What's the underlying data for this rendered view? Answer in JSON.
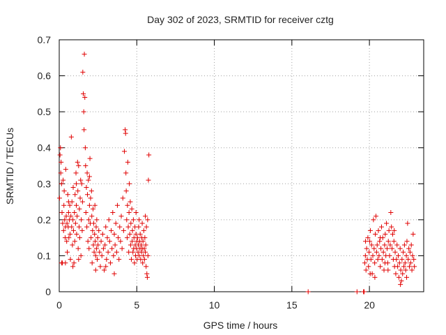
{
  "chart_data": {
    "type": "scatter",
    "title": "Day 302 of 2023, SRMTID for receiver cztg",
    "xlabel": "GPS time / hours",
    "ylabel": "SRMTID / TECUs",
    "xlim": [
      0,
      23.5
    ],
    "ylim": [
      0,
      0.7
    ],
    "xticks": [
      0,
      5,
      10,
      15,
      20
    ],
    "yticks": [
      0,
      0.1,
      0.2,
      0.3,
      0.4,
      0.5,
      0.6,
      0.7
    ],
    "grid": true,
    "marker": "+",
    "color": "#e00000",
    "series": [
      {
        "name": "SRMTID",
        "points": [
          [
            0.02,
            0.26
          ],
          [
            0.05,
            0.38
          ],
          [
            0.08,
            0.4
          ],
          [
            0.1,
            0.33
          ],
          [
            0.12,
            0.36
          ],
          [
            0.15,
            0.3
          ],
          [
            0.18,
            0.22
          ],
          [
            0.2,
            0.08
          ],
          [
            0.22,
            0.19
          ],
          [
            0.25,
            0.31
          ],
          [
            0.28,
            0.17
          ],
          [
            0.3,
            0.24
          ],
          [
            0.32,
            0.28
          ],
          [
            0.35,
            0.2
          ],
          [
            0.38,
            0.15
          ],
          [
            0.4,
            0.18
          ],
          [
            0.42,
            0.34
          ],
          [
            0.45,
            0.21
          ],
          [
            0.48,
            0.14
          ],
          [
            0.5,
            0.19
          ],
          [
            0.52,
            0.11
          ],
          [
            0.55,
            0.27
          ],
          [
            0.58,
            0.18
          ],
          [
            0.6,
            0.22
          ],
          [
            0.62,
            0.15
          ],
          [
            0.65,
            0.2
          ],
          [
            0.68,
            0.24
          ],
          [
            0.7,
            0.16
          ],
          [
            0.72,
            0.09
          ],
          [
            0.75,
            0.21
          ],
          [
            0.78,
            0.43
          ],
          [
            0.8,
            0.18
          ],
          [
            0.82,
            0.25
          ],
          [
            0.85,
            0.13
          ],
          [
            0.88,
            0.2
          ],
          [
            0.9,
            0.29
          ],
          [
            0.92,
            0.17
          ],
          [
            0.95,
            0.08
          ],
          [
            0.98,
            0.22
          ],
          [
            1.0,
            0.14
          ],
          [
            1.02,
            0.27
          ],
          [
            1.05,
            0.19
          ],
          [
            1.08,
            0.33
          ],
          [
            1.1,
            0.24
          ],
          [
            1.12,
            0.16
          ],
          [
            1.15,
            0.21
          ],
          [
            1.18,
            0.36
          ],
          [
            1.2,
            0.28
          ],
          [
            1.22,
            0.12
          ],
          [
            1.25,
            0.35
          ],
          [
            1.28,
            0.18
          ],
          [
            1.3,
            0.23
          ],
          [
            1.32,
            0.15
          ],
          [
            1.35,
            0.26
          ],
          [
            1.38,
            0.31
          ],
          [
            1.4,
            0.1
          ],
          [
            1.42,
            0.2
          ],
          [
            1.45,
            0.3
          ],
          [
            1.48,
            0.17
          ],
          [
            1.5,
            0.25
          ],
          [
            1.52,
            0.61
          ],
          [
            1.55,
            0.55
          ],
          [
            1.58,
            0.5
          ],
          [
            1.6,
            0.45
          ],
          [
            1.62,
            0.66
          ],
          [
            1.65,
            0.54
          ],
          [
            1.68,
            0.4
          ],
          [
            1.7,
            0.35
          ],
          [
            1.72,
            0.22
          ],
          [
            1.75,
            0.29
          ],
          [
            1.78,
            0.18
          ],
          [
            1.8,
            0.33
          ],
          [
            1.82,
            0.27
          ],
          [
            1.85,
            0.14
          ],
          [
            1.88,
            0.31
          ],
          [
            1.9,
            0.2
          ],
          [
            1.92,
            0.12
          ],
          [
            1.95,
            0.24
          ],
          [
            1.98,
            0.37
          ],
          [
            2.0,
            0.19
          ],
          [
            2.02,
            0.26
          ],
          [
            2.05,
            0.15
          ],
          [
            2.08,
            0.28
          ],
          [
            2.1,
            0.21
          ],
          [
            2.12,
            0.08
          ],
          [
            2.15,
            0.17
          ],
          [
            2.18,
            0.23
          ],
          [
            2.2,
            0.13
          ],
          [
            2.22,
            0.19
          ],
          [
            2.25,
            0.11
          ],
          [
            2.28,
            0.16
          ],
          [
            2.3,
            0.24
          ],
          [
            2.32,
            0.14
          ],
          [
            2.35,
            0.1
          ],
          [
            2.38,
            0.18
          ],
          [
            2.4,
            0.12
          ],
          [
            2.42,
            0.2
          ],
          [
            2.45,
            0.09
          ],
          [
            2.48,
            0.15
          ],
          [
            2.5,
            0.13
          ],
          [
            2.55,
            0.17
          ],
          [
            2.6,
            0.11
          ],
          [
            2.65,
            0.07
          ],
          [
            2.7,
            0.14
          ],
          [
            2.75,
            0.1
          ],
          [
            2.8,
            0.16
          ],
          [
            2.85,
            0.12
          ],
          [
            2.9,
            0.06
          ],
          [
            2.95,
            0.13
          ],
          [
            3.0,
            0.18
          ],
          [
            3.05,
            0.09
          ],
          [
            3.1,
            0.15
          ],
          [
            3.15,
            0.11
          ],
          [
            3.2,
            0.2
          ],
          [
            3.25,
            0.14
          ],
          [
            3.3,
            0.08
          ],
          [
            3.35,
            0.17
          ],
          [
            3.4,
            0.12
          ],
          [
            3.45,
            0.22
          ],
          [
            3.5,
            0.1
          ],
          [
            3.55,
            0.16
          ],
          [
            3.6,
            0.13
          ],
          [
            3.65,
            0.19
          ],
          [
            3.7,
            0.11
          ],
          [
            3.75,
            0.24
          ],
          [
            3.8,
            0.15
          ],
          [
            3.85,
            0.09
          ],
          [
            3.9,
            0.18
          ],
          [
            3.95,
            0.14
          ],
          [
            4.0,
            0.21
          ],
          [
            4.05,
            0.12
          ],
          [
            4.1,
            0.26
          ],
          [
            4.15,
            0.17
          ],
          [
            4.2,
            0.39
          ],
          [
            4.25,
            0.45
          ],
          [
            4.28,
            0.44
          ],
          [
            4.3,
            0.33
          ],
          [
            4.32,
            0.28
          ],
          [
            4.35,
            0.2
          ],
          [
            4.38,
            0.15
          ],
          [
            4.4,
            0.24
          ],
          [
            4.42,
            0.36
          ],
          [
            4.45,
            0.18
          ],
          [
            4.48,
            0.11
          ],
          [
            4.5,
            0.22
          ],
          [
            4.52,
            0.3
          ],
          [
            4.55,
            0.16
          ],
          [
            4.58,
            0.25
          ],
          [
            4.6,
            0.13
          ],
          [
            4.62,
            0.19
          ],
          [
            4.65,
            0.09
          ],
          [
            4.68,
            0.23
          ],
          [
            4.7,
            0.14
          ],
          [
            4.72,
            0.17
          ],
          [
            4.75,
            0.11
          ],
          [
            4.78,
            0.2
          ],
          [
            4.8,
            0.12
          ],
          [
            4.82,
            0.15
          ],
          [
            4.85,
            0.08
          ],
          [
            4.88,
            0.18
          ],
          [
            4.9,
            0.13
          ],
          [
            4.92,
            0.1
          ],
          [
            4.95,
            0.16
          ],
          [
            4.98,
            0.12
          ],
          [
            5.0,
            0.14
          ],
          [
            5.02,
            0.09
          ],
          [
            5.05,
            0.15
          ],
          [
            5.08,
            0.11
          ],
          [
            5.1,
            0.13
          ],
          [
            5.12,
            0.18
          ],
          [
            5.15,
            0.1
          ],
          [
            5.18,
            0.14
          ],
          [
            5.2,
            0.12
          ],
          [
            5.22,
            0.16
          ],
          [
            5.25,
            0.09
          ],
          [
            5.28,
            0.13
          ],
          [
            5.3,
            0.11
          ],
          [
            5.32,
            0.15
          ],
          [
            5.35,
            0.12
          ],
          [
            5.38,
            0.08
          ],
          [
            5.4,
            0.14
          ],
          [
            5.42,
            0.1
          ],
          [
            5.45,
            0.17
          ],
          [
            5.48,
            0.12
          ],
          [
            5.5,
            0.09
          ],
          [
            5.52,
            0.15
          ],
          [
            5.55,
            0.11
          ],
          [
            5.58,
            0.13
          ],
          [
            5.6,
            0.07
          ],
          [
            5.62,
            0.18
          ],
          [
            5.65,
            0.05
          ],
          [
            5.68,
            0.04
          ],
          [
            5.7,
            0.2
          ],
          [
            5.75,
            0.31
          ],
          [
            5.78,
            0.38
          ],
          [
            5.72,
            0.1
          ],
          [
            5.55,
            0.21
          ],
          [
            5.35,
            0.19
          ],
          [
            5.15,
            0.2
          ],
          [
            4.95,
            0.22
          ],
          [
            0.15,
            0.08
          ],
          [
            0.4,
            0.08
          ],
          [
            0.88,
            0.07
          ],
          [
            1.25,
            0.09
          ],
          [
            2.35,
            0.06
          ],
          [
            3.55,
            0.05
          ],
          [
            3.0,
            0.07
          ],
          [
            0.6,
            0.25
          ],
          [
            1.1,
            0.3
          ],
          [
            1.95,
            0.32
          ],
          [
            16.05,
            0.0
          ],
          [
            19.2,
            0.0
          ],
          [
            19.62,
            0.0
          ],
          [
            19.66,
            0.0
          ],
          [
            19.7,
            0.08
          ],
          [
            19.74,
            0.1
          ],
          [
            19.78,
            0.06
          ],
          [
            19.82,
            0.12
          ],
          [
            19.86,
            0.09
          ],
          [
            19.9,
            0.15
          ],
          [
            19.94,
            0.07
          ],
          [
            19.98,
            0.11
          ],
          [
            20.02,
            0.14
          ],
          [
            20.06,
            0.17
          ],
          [
            20.1,
            0.09
          ],
          [
            20.14,
            0.13
          ],
          [
            20.18,
            0.05
          ],
          [
            20.22,
            0.1
          ],
          [
            20.26,
            0.2
          ],
          [
            20.3,
            0.12
          ],
          [
            20.34,
            0.08
          ],
          [
            20.38,
            0.16
          ],
          [
            20.42,
            0.21
          ],
          [
            20.46,
            0.11
          ],
          [
            20.5,
            0.13
          ],
          [
            20.54,
            0.09
          ],
          [
            20.58,
            0.17
          ],
          [
            20.62,
            0.1
          ],
          [
            20.66,
            0.14
          ],
          [
            20.7,
            0.07
          ],
          [
            20.74,
            0.12
          ],
          [
            20.78,
            0.18
          ],
          [
            20.82,
            0.09
          ],
          [
            20.86,
            0.15
          ],
          [
            20.9,
            0.11
          ],
          [
            20.94,
            0.06
          ],
          [
            20.98,
            0.13
          ],
          [
            21.02,
            0.16
          ],
          [
            21.06,
            0.1
          ],
          [
            21.1,
            0.19
          ],
          [
            21.14,
            0.12
          ],
          [
            21.18,
            0.08
          ],
          [
            21.22,
            0.14
          ],
          [
            21.26,
            0.17
          ],
          [
            21.3,
            0.1
          ],
          [
            21.34,
            0.13
          ],
          [
            21.38,
            0.22
          ],
          [
            21.42,
            0.18
          ],
          [
            21.46,
            0.12
          ],
          [
            21.5,
            0.16
          ],
          [
            21.54,
            0.09
          ],
          [
            21.58,
            0.14
          ],
          [
            21.62,
            0.07
          ],
          [
            21.66,
            0.11
          ],
          [
            21.7,
            0.05
          ],
          [
            21.74,
            0.09
          ],
          [
            21.78,
            0.13
          ],
          [
            21.82,
            0.07
          ],
          [
            21.86,
            0.1
          ],
          [
            21.9,
            0.04
          ],
          [
            21.94,
            0.08
          ],
          [
            21.98,
            0.12
          ],
          [
            22.02,
            0.06
          ],
          [
            22.06,
            0.03
          ],
          [
            22.1,
            0.09
          ],
          [
            22.14,
            0.05
          ],
          [
            22.18,
            0.11
          ],
          [
            22.22,
            0.07
          ],
          [
            22.26,
            0.13
          ],
          [
            22.3,
            0.08
          ],
          [
            22.34,
            0.06
          ],
          [
            22.38,
            0.1
          ],
          [
            22.42,
            0.14
          ],
          [
            22.46,
            0.19
          ],
          [
            22.5,
            0.09
          ],
          [
            22.54,
            0.12
          ],
          [
            22.58,
            0.07
          ],
          [
            22.62,
            0.11
          ],
          [
            22.66,
            0.08
          ],
          [
            22.7,
            0.13
          ],
          [
            22.74,
            0.06
          ],
          [
            22.78,
            0.1
          ],
          [
            22.82,
            0.16
          ],
          [
            22.86,
            0.09
          ],
          [
            20.05,
            0.05
          ],
          [
            20.35,
            0.04
          ],
          [
            20.7,
            0.15
          ],
          [
            21.2,
            0.06
          ],
          [
            21.6,
            0.17
          ],
          [
            22.0,
            0.02
          ],
          [
            22.4,
            0.04
          ],
          [
            22.9,
            0.07
          ],
          [
            19.75,
            0.14
          ],
          [
            21.0,
            0.08
          ]
        ]
      }
    ]
  }
}
